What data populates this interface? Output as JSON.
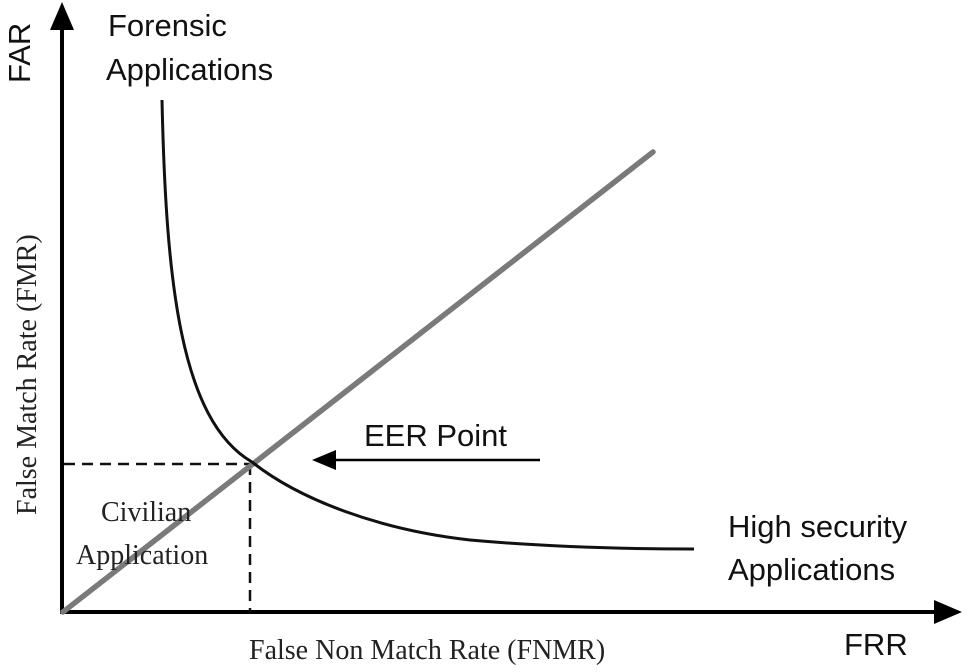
{
  "diagram": {
    "y_axis_short_label": "FAR",
    "x_axis_short_label": "FRR",
    "y_axis_title": "False Match Rate (FMR)",
    "x_axis_title": "False Non Match Rate (FNMR)",
    "top_label_line1": "Forensic",
    "top_label_line2": "Applications",
    "right_label_line1": "High security",
    "right_label_line2": "Applications",
    "eer_label": "EER Point",
    "region_label_line1": "Civilian",
    "region_label_line2": "Application"
  },
  "colors": {
    "axis": "#000000",
    "curve": "#111111",
    "diagonal": "#7a7a7a",
    "dashed": "#111111"
  }
}
